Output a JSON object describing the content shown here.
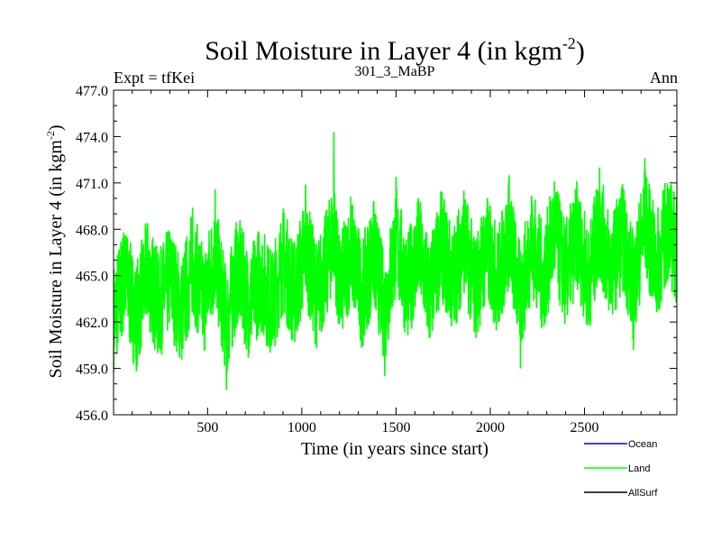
{
  "chart_data": {
    "type": "line",
    "title": "Soil Moisture in Layer 4 (in kgm",
    "title_sup": "-2",
    "title_tail": ")",
    "subtitle_left": "Expt = tfKei",
    "subtitle_center": "301_3_MaBP",
    "subtitle_right": "Ann",
    "ylabel": "Soil Moisture in Layer 4 (in kgm",
    "ylabel_sup": "-2",
    "ylabel_tail": ")",
    "xlabel": "Time (in years since start)",
    "xlim": [
      1,
      2990
    ],
    "ylim": [
      456.0,
      477.0
    ],
    "x_ticks": [
      {
        "value": 500,
        "label": "500"
      },
      {
        "value": 1000,
        "label": "1000"
      },
      {
        "value": 1500,
        "label": "1500"
      },
      {
        "value": 2000,
        "label": "2000"
      },
      {
        "value": 2500,
        "label": "2500"
      }
    ],
    "y_ticks": [
      {
        "value": 456.0,
        "label": "456.0"
      },
      {
        "value": 459.0,
        "label": "459.0"
      },
      {
        "value": 462.0,
        "label": "462.0"
      },
      {
        "value": 465.0,
        "label": "465.0"
      },
      {
        "value": 468.0,
        "label": "468.0"
      },
      {
        "value": 471.0,
        "label": "471.0"
      },
      {
        "value": 474.0,
        "label": "474.0"
      },
      {
        "value": 477.0,
        "label": "477.0"
      }
    ],
    "grid": false,
    "legend_position": "bottom-right",
    "series": [
      {
        "name": "Ocean",
        "color": "#0000ff",
        "values": []
      },
      {
        "name": "Land",
        "color": "#00ff00",
        "x": [
          1,
          60,
          120,
          180,
          240,
          300,
          360,
          420,
          480,
          540,
          600,
          660,
          720,
          780,
          840,
          900,
          960,
          1020,
          1080,
          1140,
          1170,
          1200,
          1260,
          1320,
          1380,
          1440,
          1500,
          1560,
          1620,
          1680,
          1740,
          1800,
          1860,
          1920,
          1980,
          2040,
          2100,
          2160,
          2220,
          2280,
          2340,
          2400,
          2460,
          2520,
          2580,
          2640,
          2700,
          2760,
          2820,
          2880,
          2940,
          2990
        ],
        "values": [
          460.1,
          467.6,
          459.8,
          468.2,
          461.5,
          466.9,
          460.3,
          469.4,
          462.1,
          470.6,
          457.6,
          467.8,
          461.0,
          466.2,
          460.8,
          469.0,
          462.4,
          470.9,
          461.9,
          468.8,
          474.3,
          462.2,
          470.1,
          461.7,
          469.3,
          458.5,
          471.4,
          462.3,
          469.6,
          461.0,
          470.2,
          463.0,
          470.5,
          461.6,
          468.9,
          462.7,
          471.5,
          459.0,
          469.8,
          462.5,
          471.1,
          463.1,
          470.4,
          461.8,
          472.0,
          463.6,
          469.9,
          460.2,
          472.6,
          463.3,
          471.0,
          466.5
        ]
      },
      {
        "name": "AllSurf",
        "color": "#000000",
        "values": []
      }
    ]
  }
}
